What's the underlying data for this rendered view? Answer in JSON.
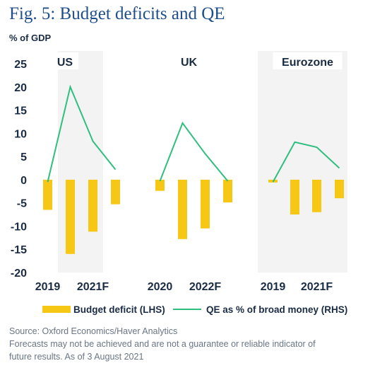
{
  "title": "Fig. 5: Budget deficits and QE",
  "unit_label": "% of GDP",
  "source_lines": [
    "Source: Oxford Economics/Haver Analytics",
    "Forecasts may not be achieved and are not a guarantee or reliable indicator of",
    "future results. As of 3 August 2021"
  ],
  "colors": {
    "bar": "#f7c715",
    "line": "#2ebf7f",
    "panel_bg": "#f3f3f3",
    "text": "#1a2b44",
    "title": "#1f4e8c"
  },
  "chart_data": {
    "type": "bar",
    "y_ticks": [
      "25",
      "20",
      "15",
      "10",
      "5",
      "0",
      "-5",
      "-10",
      "-15",
      "-20"
    ],
    "ylim": [
      -20,
      25
    ],
    "grid": false,
    "legend": {
      "position": "bottom",
      "bar_label": "Budget deficit (LHS)",
      "line_label": "QE as % of broad money (RHS)"
    },
    "panels": [
      {
        "name": "US",
        "x_tick_labels": [
          "2019",
          "2021F"
        ],
        "budget_deficit": [
          -6.5,
          -16.0,
          -11.2,
          -5.3
        ],
        "qe": [
          -0.5,
          20.0,
          8.3,
          2.2
        ]
      },
      {
        "name": "UK",
        "x_tick_labels": [
          "2020",
          "2022F"
        ],
        "budget_deficit": [
          -2.4,
          -12.8,
          -10.5,
          -4.9
        ],
        "qe": [
          -0.3,
          12.2,
          5.6,
          -0.3
        ]
      },
      {
        "name": "Eurozone",
        "x_tick_labels": [
          "2019",
          "2021F"
        ],
        "budget_deficit": [
          -0.6,
          -7.5,
          -7.0,
          -4.0
        ],
        "qe": [
          -0.5,
          8.1,
          7.0,
          2.5
        ]
      }
    ]
  }
}
